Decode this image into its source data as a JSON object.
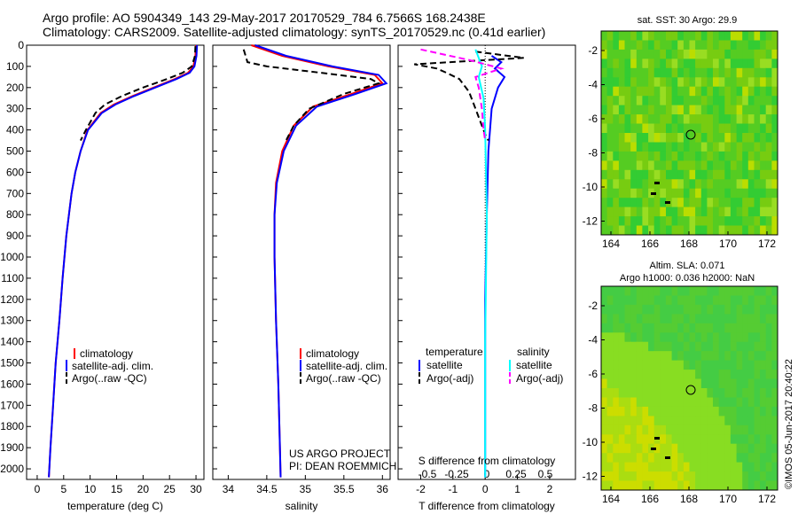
{
  "header": {
    "line1": "Argo profile: AO 5904349_143 29-May-2017 20170529_784 6.7566S 168.2438E",
    "line2": "Climatology: CARS2009. Satellite-adjusted climatology: synTS_20170529.nc (0.41d earlier)"
  },
  "colors": {
    "climatology": "#ff0000",
    "satellite": "#0000ff",
    "argo": "#000000",
    "argo_salinity": "#ff00ff",
    "satellite_salinity": "#00ffff"
  },
  "watermark": "©IMOS 05-Jun-2017 20:40:22",
  "project": {
    "line1": "US ARGO PROJECT",
    "line2": "PI: DEAN ROEMMICH"
  },
  "legend_main": {
    "climatology": "climatology",
    "satellite": "satellite-adj. clim.",
    "argo": "Argo(..raw -QC)"
  },
  "legend_diff": {
    "temp_header": "temperature",
    "sal_header": "salinity",
    "temp_sat": "satellite",
    "temp_argo": "Argo(-adj)",
    "sal_sat": "satellite",
    "sal_argo": "Argo(-adj)"
  },
  "maps": {
    "sst_title": "sat. SST: 30 Argo: 29.9",
    "sla_title1": "Altim. SLA: 0.071",
    "sla_title2": "Argo h1000: 0.036 h2000: NaN",
    "x_ticks": [
      "164",
      "166",
      "168",
      "170",
      "172"
    ],
    "y_ticks": [
      "-2",
      "-4",
      "-6",
      "-8",
      "-10",
      "-12"
    ]
  },
  "chart_data": [
    {
      "type": "line",
      "title": "",
      "xlabel": "temperature (deg C)",
      "ylabel": "",
      "xlim": [
        -2,
        31.5
      ],
      "ylim": [
        2050,
        0
      ],
      "x_ticks": [
        0,
        5,
        10,
        15,
        20,
        25,
        30
      ],
      "y_ticks": [
        0,
        100,
        200,
        300,
        400,
        500,
        600,
        700,
        800,
        900,
        1000,
        1100,
        1200,
        1300,
        1400,
        1500,
        1600,
        1700,
        1800,
        1900,
        2000
      ],
      "series": [
        {
          "name": "climatology",
          "color": "#ff0000",
          "x": [
            30.0,
            29.9,
            29.5,
            28.5,
            26.0,
            22.0,
            18.0,
            14.5,
            12.0,
            9.5,
            8.2,
            7.2,
            6.5,
            5.5,
            4.8,
            4.2,
            3.5,
            3.0,
            2.5,
            2.2
          ],
          "depth": [
            0,
            50,
            100,
            130,
            160,
            200,
            240,
            280,
            320,
            400,
            500,
            600,
            700,
            900,
            1100,
            1300,
            1500,
            1700,
            1900,
            2040
          ]
        },
        {
          "name": "satellite-adj. clim.",
          "color": "#0000ff",
          "x": [
            30.2,
            30.1,
            29.7,
            28.8,
            26.3,
            22.3,
            18.3,
            14.8,
            12.2,
            9.6,
            8.2,
            7.2,
            6.5,
            5.5,
            4.8,
            4.2,
            3.5,
            3.0,
            2.5,
            2.2
          ],
          "depth": [
            0,
            50,
            100,
            130,
            160,
            200,
            240,
            280,
            320,
            400,
            500,
            600,
            700,
            900,
            1100,
            1300,
            1500,
            1700,
            1900,
            2040
          ]
        },
        {
          "name": "Argo(..raw -QC)",
          "color": "#000000",
          "dashed": true,
          "x": [
            29.9,
            29.8,
            29.2,
            27.5,
            24.5,
            20.0,
            16.0,
            12.8,
            11.0,
            9.2,
            8.2
          ],
          "depth": [
            5,
            50,
            100,
            130,
            160,
            200,
            240,
            280,
            320,
            400,
            450
          ]
        }
      ]
    },
    {
      "type": "line",
      "title": "",
      "xlabel": "salinity",
      "ylabel": "",
      "xlim": [
        33.8,
        36.1
      ],
      "ylim": [
        2050,
        0
      ],
      "x_ticks": [
        34,
        34.5,
        35,
        35.5,
        36
      ],
      "series": [
        {
          "name": "climatology",
          "color": "#ff0000",
          "x": [
            34.3,
            34.7,
            35.3,
            35.9,
            36.0,
            35.6,
            35.1,
            34.85,
            34.7,
            34.62,
            34.6,
            34.6,
            34.62,
            34.65,
            34.67,
            34.68
          ],
          "depth": [
            0,
            50,
            100,
            140,
            180,
            230,
            290,
            380,
            500,
            650,
            800,
            1000,
            1300,
            1600,
            1900,
            2040
          ]
        },
        {
          "name": "satellite-adj. clim.",
          "color": "#0000ff",
          "x": [
            34.35,
            34.75,
            35.35,
            35.95,
            36.05,
            35.65,
            35.15,
            34.88,
            34.72,
            34.63,
            34.6,
            34.6,
            34.62,
            34.65,
            34.67,
            34.68
          ],
          "depth": [
            0,
            50,
            100,
            140,
            180,
            230,
            290,
            380,
            500,
            650,
            800,
            1000,
            1300,
            1600,
            1900,
            2040
          ]
        },
        {
          "name": "Argo(..raw -QC)",
          "color": "#000000",
          "dashed": true,
          "x": [
            34.2,
            34.25,
            34.5,
            35.2,
            35.85,
            35.95,
            35.5,
            35.05,
            34.85,
            34.75
          ],
          "depth": [
            20,
            80,
            100,
            130,
            160,
            180,
            230,
            300,
            380,
            450
          ]
        }
      ]
    },
    {
      "type": "line",
      "title": "",
      "xlabel": "T difference from climatology",
      "xlabel_top": "S difference from climatology",
      "ylabel": "",
      "xlim": [
        -2.7,
        2.8
      ],
      "ylim": [
        2050,
        0
      ],
      "x_ticks": [
        -2,
        -1,
        0,
        1,
        2
      ],
      "s_ticks": [
        "-0.5",
        "-0.25",
        "0",
        "0.25",
        "0.5"
      ],
      "series": [
        {
          "name": "temperature satellite",
          "color": "#0000ff",
          "x": [
            0.2,
            0.5,
            0.3,
            0.6,
            0.4,
            0.2,
            0.1,
            0.05,
            0.0,
            0.0
          ],
          "depth": [
            50,
            80,
            110,
            150,
            200,
            300,
            500,
            800,
            1200,
            2040
          ]
        },
        {
          "name": "temperature Argo(-adj)",
          "color": "#000000",
          "dashed": true,
          "x": [
            -0.3,
            1.2,
            -2.2,
            -1.5,
            -1.2,
            -0.8,
            -0.5,
            -0.3,
            -0.1,
            0.0,
            0.1
          ],
          "depth": [
            30,
            60,
            90,
            110,
            130,
            160,
            220,
            300,
            380,
            420,
            450
          ]
        },
        {
          "name": "salinity satellite",
          "color": "#00ffff",
          "x": [
            -0.3,
            -0.2,
            -0.1,
            -0.2,
            -0.05,
            0.0,
            0.05,
            0.0,
            0.0
          ],
          "depth": [
            20,
            60,
            100,
            150,
            250,
            400,
            800,
            1400,
            2040
          ]
        },
        {
          "name": "salinity Argo(-adj)",
          "color": "#ff00ff",
          "dashed": true,
          "x": [
            -2.0,
            -0.5,
            0.5,
            -0.3,
            -0.2,
            -0.1,
            -0.05,
            0.0
          ],
          "depth": [
            20,
            70,
            110,
            150,
            200,
            300,
            400,
            450
          ]
        }
      ]
    }
  ]
}
